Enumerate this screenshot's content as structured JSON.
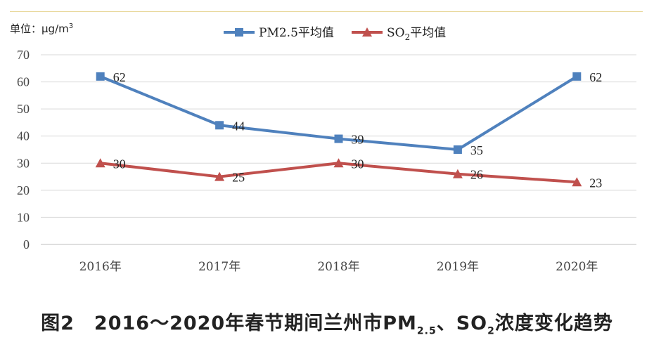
{
  "unit": {
    "prefix": "单位：μg/m",
    "sup": "3"
  },
  "caption": {
    "prefix": "图2　2016～2020年春节期间兰州市PM",
    "pm_sub": "2.5",
    "mid": "、SO",
    "so2_sub": "2",
    "suffix": "浓度变化趋势"
  },
  "chart_data": {
    "type": "line",
    "categories": [
      "2016年",
      "2017年",
      "2018年",
      "2019年",
      "2020年"
    ],
    "ylim": [
      0,
      70
    ],
    "yticks": [
      0,
      10,
      20,
      30,
      40,
      50,
      60,
      70
    ],
    "grid": true,
    "legend_position": "top",
    "series": [
      {
        "name": "PM2.5平均值",
        "values": [
          62,
          44,
          39,
          35,
          62
        ],
        "color": "#4f81bd",
        "marker": "square"
      },
      {
        "name_main": "SO",
        "name_sub": "2",
        "name_rest": "平均值",
        "values": [
          30,
          25,
          30,
          26,
          23
        ],
        "color": "#c0504d",
        "marker": "triangle"
      }
    ]
  }
}
